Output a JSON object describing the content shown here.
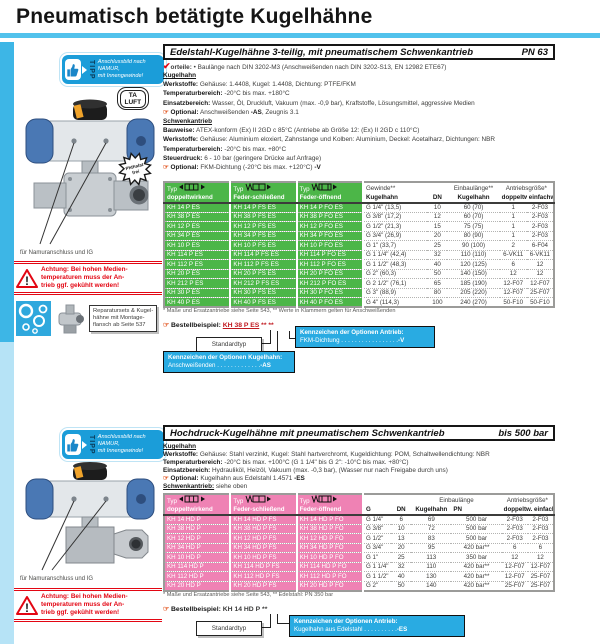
{
  "page": {
    "title": "Pneumatisch betätigte Kugelhähne"
  },
  "colors": {
    "accent_blue": "#29abe2",
    "green": "#4cb648",
    "pink": "#ef82b4",
    "red": "#e30613",
    "bar_blue": "#3db6e6"
  },
  "tip_badge": {
    "label": "TIPP",
    "text": "Anschlussbild nach NAMUR,\nmit Innengewinde!"
  },
  "ta_luft_badge": {
    "line1": "TA",
    "line2": "LUFT"
  },
  "starburst_badge": {
    "line1": "Phthalat",
    "line2": "frei"
  },
  "caption_photo": "für Namuranschluss und IG",
  "warning_text": "Achtung: Bei hohen Medien-\ntemperaturen muss der An-\ntrieb ggf. gekühlt werden!",
  "repair_note": "Reparatursets & Kugel-\nhähne mit Montage-\nflansch ab Seite 537",
  "section1": {
    "header": {
      "title": "Edelstahl-Kugelhähne 3-teilig, mit pneumatischem Schwenkantrieb",
      "badge": "PN 63"
    },
    "vorteile": {
      "prefix": "orteile:",
      "text": "• Baulänge nach DIN 3202-M3 (Anschweißenden nach DIN 3202-S13, EN 12982 ETE67)"
    },
    "lines": [
      {
        "t": "h",
        "text": "Kugelhahn"
      },
      {
        "t": "kv",
        "label": "Werkstoffe:",
        "text": "Gehäuse: 1.4408, Kugel: 1.4408, Dichtung: PTFE/FKM"
      },
      {
        "t": "kv",
        "label": "Temperaturbereich:",
        "text": "-20°C bis max. +180°C"
      },
      {
        "t": "kv",
        "label": "Einsatzbereich:",
        "text": "Wasser, Öl, Druckluft, Vakuum (max. -0,9 bar), Kraftstoffe, Lösungsmittel, aggressive Medien"
      },
      {
        "t": "opt",
        "label": "Optional:",
        "text": "Anschweißenden **-AS**, Zeugnis 3.1"
      },
      {
        "t": "h",
        "text": "Schwenkantrieb"
      },
      {
        "t": "kv",
        "label": "Bauweise:",
        "text": "ATEX-konform (Ex) II 2GD c 85°C (Antriebe ab Größe 12: (Ex) II 2GD c 110°C)"
      },
      {
        "t": "kv",
        "label": "Werkstoffe:",
        "text": "Gehäuse: Aluminium eloxiert, Zahnstange und Kolben: Aluminium, Deckel: Acetalharz, Dichtungen: NBR"
      },
      {
        "t": "kv",
        "label": "Temperaturbereich:",
        "text": "-20°C bis max. +80°C"
      },
      {
        "t": "kv",
        "label": "Steuerdruck:",
        "text": "6 - 10 bar (geringere Drücke auf Anfrage)"
      },
      {
        "t": "opt",
        "label": "Optional:",
        "text": "FKM-Dichtung (-20°C bis max. +120°C) **-V**"
      }
    ],
    "table": {
      "typ_label": "Typ",
      "type_cols": [
        "doppeltwirkend",
        "Feder-schließend",
        "Feder-öffnend"
      ],
      "gewinde_top": "Gewinde**",
      "gewinde_bottom": "Kugelhahn",
      "dn": "DN",
      "einbau_top": "Einbaulänge**",
      "einbau_bottom": "Kugelhahn",
      "antrieb_top": "Antriebsgröße*",
      "antrieb_b1": "doppeltw.",
      "antrieb_b2": "einfachw.",
      "rows": [
        [
          "KH 14 P ES",
          "KH 14 P FS ES",
          "KH 14 P FO ES",
          "G 1/4\" (13,5)",
          "10",
          "60 (70)",
          "1",
          "2-F03"
        ],
        [
          "KH 38 P ES",
          "KH 38 P FS ES",
          "KH 38 P FO ES",
          "G 3/8\" (17,2)",
          "12",
          "60 (70)",
          "1",
          "2-F03"
        ],
        [
          "KH 12 P ES",
          "KH 12 P FS ES",
          "KH 12 P FO ES",
          "G 1/2\" (21,3)",
          "15",
          "75 (75)",
          "1",
          "2-F03"
        ],
        [
          "KH 34 P ES",
          "KH 34 P FS ES",
          "KH 34 P FO ES",
          "G 3/4\" (26,9)",
          "20",
          "80 (90)",
          "1",
          "2-F03"
        ],
        [
          "KH 10 P ES",
          "KH 10 P FS ES",
          "KH 10 P FO ES",
          "G 1\" (33,7)",
          "25",
          "90 (100)",
          "2",
          "6-F04"
        ],
        [
          "KH 114 P ES",
          "KH 114 P FS ES",
          "KH 114 P FO ES",
          "G 1 1/4\" (42,4)",
          "32",
          "110 (110)",
          "6-VK11",
          "6-VK11"
        ],
        [
          "KH 112 P ES",
          "KH 112 P FS ES",
          "KH 112 P FO ES",
          "G 1 1/2\" (48,3)",
          "40",
          "120 (125)",
          "6",
          "12"
        ],
        [
          "KH 20 P ES",
          "KH 20 P FS ES",
          "KH 20 P FO ES",
          "G 2\" (60,3)",
          "50",
          "140 (150)",
          "12",
          "12"
        ],
        [
          "KH 212 P ES",
          "KH 212 P FS ES",
          "KH 212 P FO ES",
          "G 2 1/2\" (76,1)",
          "65",
          "185 (190)",
          "12-F07",
          "12-F07"
        ],
        [
          "KH 30 P ES",
          "KH 30 P FS ES",
          "KH 30 P FO ES",
          "G 3\" (88,9)",
          "80",
          "205 (220)",
          "12-F07",
          "25-F07"
        ],
        [
          "KH 40 P ES",
          "KH 40 P FS ES",
          "KH 40 P FO ES",
          "G 4\" (114,3)",
          "100",
          "240 (270)",
          "50-F10",
          "50-F10"
        ]
      ]
    },
    "footnote": "* Maße und Ersatzantriebe siehe Seite 543, ** Werte in Klammern gelten für Anschweißenden",
    "bestell": {
      "label": "Bestellbeispiel:",
      "example": "KH 38 P ES",
      "stars": "** **",
      "standard": "Standardtyp",
      "box_antrieb": {
        "title": "Kennzeichen der Optionen Antrieb:",
        "entry": "FKM-Dichtung",
        "dots": ". . . . . . . . . . . . . . . . .",
        "code": "-V"
      },
      "box_kugelhahn": {
        "title": "Kennzeichen der Optionen Kugelhahn:",
        "entry": "Anschweißenden",
        "dots": ". . . . . . . . . . . . .",
        "code": "-AS"
      }
    }
  },
  "section2": {
    "header": {
      "title": "Hochdruck-Kugelhähne mit pneumatischem Schwenkantrieb",
      "badge": "bis 500 bar"
    },
    "lines": [
      {
        "t": "h",
        "text": "Kugelhahn"
      },
      {
        "t": "kv",
        "label": "Werkstoffe:",
        "text": "Gehäuse: Stahl verzinkt, Kugel: Stahl hartverchromt, Kugeldichtung: POM, Schaltwellendichtung: NBR"
      },
      {
        "t": "kv",
        "label": "Temperaturbereich:",
        "text": "-20°C bis max. +100°C (G 1 1/4\" bis G 2\": -10°C bis max. +80°C)"
      },
      {
        "t": "kv",
        "label": "Einsatzbereich:",
        "text": "Hydrauliköl, Heizöl, Vakuum (max. -0,3 bar), (Wasser nur nach Freigabe durch uns)"
      },
      {
        "t": "opt",
        "label": "Optional:",
        "text": "Kugelhahn aus Edelstahl 1.4571 **-ES**"
      },
      {
        "t": "kvu",
        "label": "Schwenkantrieb:",
        "text": "siehe oben"
      }
    ],
    "table": {
      "typ_label": "Typ",
      "type_cols": [
        "doppeltwirkend",
        "Feder-schließend",
        "Feder-öffnend"
      ],
      "g": "G",
      "dn": "DN",
      "einbau_top": "Einbaulänge",
      "einbau_bottom": "Kugelhahn",
      "pn": "PN",
      "antrieb_top": "Antriebsgröße*",
      "antrieb_bottom": "doppeltw. einfachw.",
      "rows": [
        [
          "KH 14 HD P",
          "KH 14 HD P FS",
          "KH 14 HD P FO",
          "G 1/4\"",
          "6",
          "69",
          "500 bar",
          "2-F03",
          "2-F03"
        ],
        [
          "KH 38 HD P",
          "KH 38 HD P FS",
          "KH 38 HD P FO",
          "G 3/8\"",
          "10",
          "72",
          "500 bar",
          "2-F03",
          "2-F03"
        ],
        [
          "KH 12 HD P",
          "KH 12 HD P FS",
          "KH 12 HD P FO",
          "G 1/2\"",
          "13",
          "83",
          "500 bar",
          "2-F03",
          "2-F03"
        ],
        [
          "KH 34 HD P",
          "KH 34 HD P FS",
          "KH 34 HD P FO",
          "G 3/4\"",
          "20",
          "95",
          "420 bar**",
          "6",
          "6"
        ],
        [
          "KH 10 HD P",
          "KH 10 HD P FS",
          "KH 10 HD P FO",
          "G 1\"",
          "25",
          "113",
          "350 bar",
          "12",
          "12"
        ],
        [
          "KH 114 HD P",
          "KH 114 HD P FS",
          "KH 114 HD P FO",
          "G 1 1/4\"",
          "32",
          "110",
          "420 bar**",
          "12-F07",
          "12-F07"
        ],
        [
          "KH 112 HD P",
          "KH 112 HD P FS",
          "KH 112 HD P FO",
          "G 1 1/2\"",
          "40",
          "130",
          "420 bar**",
          "12-F07",
          "25-F07"
        ],
        [
          "KH 20 HD P",
          "KH 20 HD P FS",
          "KH 20 HD P FO",
          "G 2\"",
          "50",
          "140",
          "420 bar**",
          "25-F07",
          "25-F07"
        ]
      ]
    },
    "footnote": "* Maße und Ersatzantriebe siehe Seite 543, ** Edelstahl: PN 350 bar",
    "bestell": {
      "label": "Bestellbeispiel:",
      "example": "KH 14 HD P",
      "stars": "**",
      "standard": "Standardtyp",
      "box_antrieb": {
        "title": "Kennzeichen der Optionen Antrieb:",
        "entry": "Kugelhahn aus Edelstahl",
        "dots": ". . . . . . . . . .",
        "code": "-ES"
      }
    }
  }
}
